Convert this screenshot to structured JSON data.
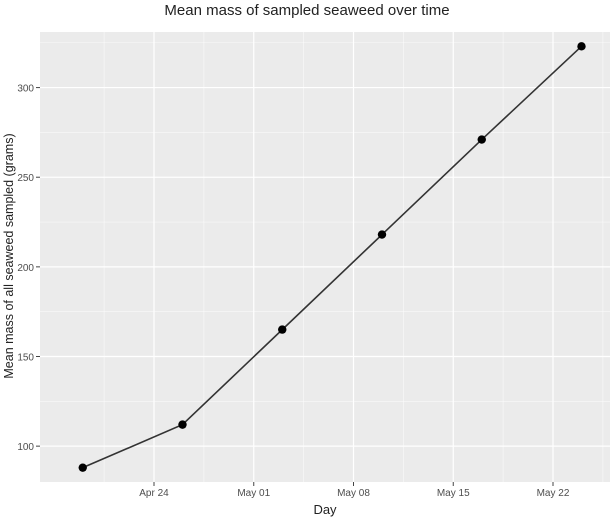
{
  "chart_data": {
    "type": "line",
    "title": "Mean mass of sampled seaweed over time",
    "xlabel": "Day",
    "ylabel": "Mean mass of all seaweed sampled (grams)",
    "x_ticks": [
      {
        "date": "2024-04-24",
        "label": "Apr 24"
      },
      {
        "date": "2024-05-01",
        "label": "May 01"
      },
      {
        "date": "2024-05-08",
        "label": "May 08"
      },
      {
        "date": "2024-05-15",
        "label": "May 15"
      },
      {
        "date": "2024-05-22",
        "label": "May 22"
      }
    ],
    "y_ticks": [
      100,
      150,
      200,
      250,
      300
    ],
    "xlim": [
      "2024-04-16",
      "2024-05-26"
    ],
    "ylim": [
      80,
      331
    ],
    "grid": true,
    "series": [
      {
        "points": [
          {
            "x": "2024-04-19",
            "y": 88
          },
          {
            "x": "2024-04-26",
            "y": 112
          },
          {
            "x": "2024-05-03",
            "y": 165
          },
          {
            "x": "2024-05-10",
            "y": 218
          },
          {
            "x": "2024-05-17",
            "y": 271
          },
          {
            "x": "2024-05-24",
            "y": 323
          }
        ]
      }
    ],
    "colors": {
      "panel_background": "#ebebeb",
      "grid": "#ffffff",
      "line": "#333333",
      "marker": "#000000"
    }
  }
}
